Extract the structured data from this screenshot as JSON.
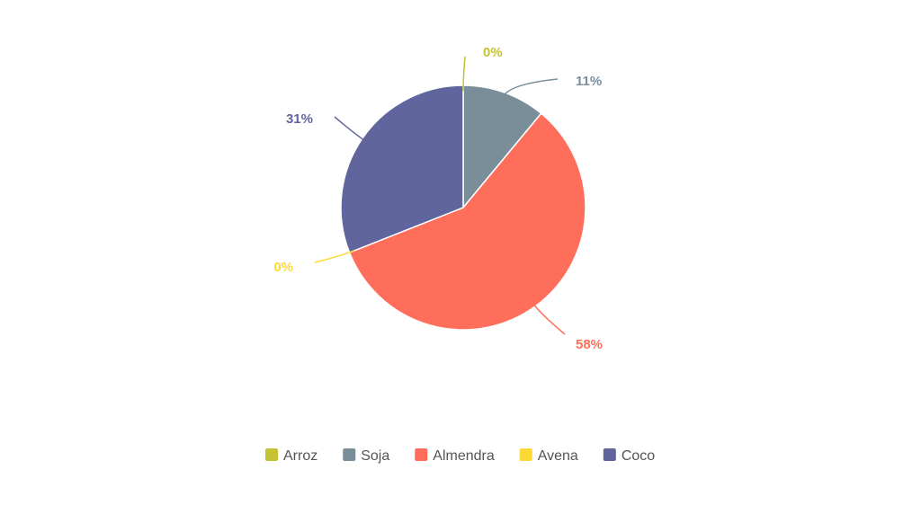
{
  "chart_data": {
    "type": "pie",
    "title": "",
    "categories": [
      "Arroz",
      "Soja",
      "Almendra",
      "Avena",
      "Coco"
    ],
    "values": [
      0,
      11,
      58,
      0,
      31
    ],
    "data_labels": [
      "0%",
      "11%",
      "58%",
      "0%",
      "31%"
    ],
    "colors": [
      "#c5c234",
      "#7a8e99",
      "#ff6e5a",
      "#fbd937",
      "#61659e"
    ],
    "legend_position": "bottom"
  }
}
